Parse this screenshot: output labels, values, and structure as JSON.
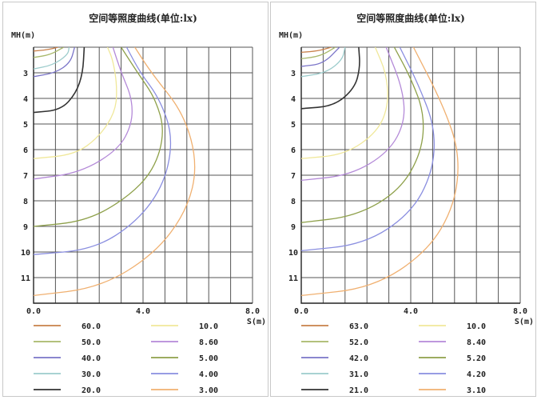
{
  "chart_data": [
    {
      "type": "contour",
      "title": "空间等照度曲线(单位:lx)",
      "ylabel": "MH(m)",
      "xlabel": "S(m)",
      "x_ticks": [
        "0.0",
        "4.0",
        "8.0"
      ],
      "y_ticks": [
        "3",
        "4",
        "5",
        "6",
        "7",
        "8",
        "9",
        "10",
        "11"
      ],
      "xlim": [
        0,
        8
      ],
      "ylim": [
        2,
        12
      ],
      "grid": true,
      "legend_position": "bottom",
      "legend": [
        {
          "label": "60.0",
          "color": "#c8804a",
          "value": 60.0
        },
        {
          "label": "50.0",
          "color": "#a8b86a",
          "value": 50.0
        },
        {
          "label": "40.0",
          "color": "#7a74c8",
          "value": 40.0
        },
        {
          "label": "30.0",
          "color": "#9ccccc",
          "value": 30.0
        },
        {
          "label": "20.0",
          "color": "#333333",
          "value": 20.0
        },
        {
          "label": "10.0",
          "color": "#f0e89a",
          "value": 10.0
        },
        {
          "label": "8.60",
          "color": "#b48ad8",
          "value": 8.6
        },
        {
          "label": "5.00",
          "color": "#8ea04a",
          "value": 5.0
        },
        {
          "label": "4.00",
          "color": "#8a8ee0",
          "value": 4.0
        },
        {
          "label": "3.00",
          "color": "#f0b070",
          "value": 3.0
        }
      ],
      "series": [
        {
          "value": 60.0,
          "points": [
            [
              0,
              2.15
            ],
            [
              0.5,
              2.1
            ],
            [
              0.9,
              2.0
            ]
          ]
        },
        {
          "value": 50.0,
          "points": [
            [
              0,
              2.4
            ],
            [
              0.6,
              2.3
            ],
            [
              1.1,
              2.0
            ]
          ]
        },
        {
          "value": 30.0,
          "points": [
            [
              0,
              2.85
            ],
            [
              0.7,
              2.7
            ],
            [
              1.25,
              2.3
            ],
            [
              1.3,
              2.0
            ]
          ]
        },
        {
          "value": 40.0,
          "points": [
            [
              0,
              3.15
            ],
            [
              0.8,
              3.0
            ],
            [
              1.35,
              2.6
            ],
            [
              1.5,
              2.0
            ]
          ]
        },
        {
          "value": 20.0,
          "points": [
            [
              0,
              4.55
            ],
            [
              1.0,
              4.45
            ],
            [
              1.55,
              3.8
            ],
            [
              1.8,
              3.0
            ],
            [
              1.85,
              2.0
            ]
          ]
        },
        {
          "value": 10.0,
          "points": [
            [
              0,
              6.35
            ],
            [
              1.5,
              6.2
            ],
            [
              2.4,
              5.5
            ],
            [
              3.0,
              4.5
            ],
            [
              3.05,
              3.5
            ],
            [
              2.9,
              2.5
            ],
            [
              2.7,
              2.0
            ]
          ]
        },
        {
          "value": 8.6,
          "points": [
            [
              0,
              7.15
            ],
            [
              1.7,
              6.9
            ],
            [
              3.1,
              6.0
            ],
            [
              3.6,
              5.0
            ],
            [
              3.6,
              4.0
            ],
            [
              3.2,
              3.0
            ],
            [
              2.9,
              2.0
            ]
          ]
        },
        {
          "value": 5.0,
          "points": [
            [
              0,
              9.0
            ],
            [
              1.9,
              8.8
            ],
            [
              3.4,
              7.9
            ],
            [
              4.4,
              6.8
            ],
            [
              4.8,
              5.3
            ],
            [
              4.45,
              4.0
            ],
            [
              3.8,
              3.0
            ],
            [
              3.2,
              2.0
            ]
          ]
        },
        {
          "value": 4.0,
          "points": [
            [
              0,
              10.1
            ],
            [
              2.2,
              9.9
            ],
            [
              3.8,
              8.8
            ],
            [
              4.8,
              7.3
            ],
            [
              5.1,
              5.5
            ],
            [
              4.6,
              4.0
            ],
            [
              3.9,
              3.0
            ],
            [
              3.4,
              2.0
            ]
          ]
        },
        {
          "value": 3.0,
          "points": [
            [
              0,
              11.7
            ],
            [
              2.4,
              11.4
            ],
            [
              4.4,
              10.1
            ],
            [
              5.6,
              8.4
            ],
            [
              6.0,
              6.6
            ],
            [
              5.5,
              4.6
            ],
            [
              4.3,
              3.0
            ],
            [
              3.7,
              2.0
            ]
          ]
        }
      ]
    },
    {
      "type": "contour",
      "title": "空间等照度曲线(单位:lx)",
      "ylabel": "MH(m)",
      "xlabel": "S(m)",
      "x_ticks": [
        "0.0",
        "4.0",
        "8.0"
      ],
      "y_ticks": [
        "3",
        "4",
        "5",
        "6",
        "7",
        "8",
        "9",
        "10",
        "11"
      ],
      "xlim": [
        0,
        8
      ],
      "ylim": [
        2,
        12
      ],
      "grid": true,
      "legend_position": "bottom",
      "legend": [
        {
          "label": "63.0",
          "color": "#c8804a",
          "value": 63.0
        },
        {
          "label": "52.0",
          "color": "#a8b86a",
          "value": 52.0
        },
        {
          "label": "42.0",
          "color": "#7a74c8",
          "value": 42.0
        },
        {
          "label": "31.0",
          "color": "#9ccccc",
          "value": 31.0
        },
        {
          "label": "21.0",
          "color": "#333333",
          "value": 21.0
        },
        {
          "label": "10.0",
          "color": "#f0e89a",
          "value": 10.0
        },
        {
          "label": "8.40",
          "color": "#b48ad8",
          "value": 8.4
        },
        {
          "label": "5.20",
          "color": "#8ea04a",
          "value": 5.2
        },
        {
          "label": "4.20",
          "color": "#8a8ee0",
          "value": 4.2
        },
        {
          "label": "3.10",
          "color": "#f0b070",
          "value": 3.1
        }
      ],
      "series": [
        {
          "value": 63.0,
          "points": [
            [
              0,
              2.2
            ],
            [
              0.6,
              2.15
            ],
            [
              1.1,
              2.0
            ]
          ]
        },
        {
          "value": 52.0,
          "points": [
            [
              0,
              2.45
            ],
            [
              0.7,
              2.35
            ],
            [
              1.25,
              2.0
            ]
          ]
        },
        {
          "value": 42.0,
          "points": [
            [
              0,
              2.75
            ],
            [
              0.8,
              2.65
            ],
            [
              1.4,
              2.0
            ]
          ]
        },
        {
          "value": 31.0,
          "points": [
            [
              0,
              3.15
            ],
            [
              0.9,
              3.0
            ],
            [
              1.5,
              2.5
            ],
            [
              1.6,
              2.0
            ]
          ]
        },
        {
          "value": 21.0,
          "points": [
            [
              0,
              4.4
            ],
            [
              1.2,
              4.3
            ],
            [
              1.95,
              3.6
            ],
            [
              2.15,
              2.8
            ],
            [
              2.1,
              2.0
            ]
          ]
        },
        {
          "value": 10.0,
          "points": [
            [
              0,
              6.35
            ],
            [
              1.6,
              6.2
            ],
            [
              2.8,
              5.3
            ],
            [
              3.2,
              4.2
            ],
            [
              3.1,
              3.0
            ],
            [
              2.7,
              2.0
            ]
          ]
        },
        {
          "value": 8.4,
          "points": [
            [
              0,
              7.2
            ],
            [
              1.8,
              7.0
            ],
            [
              3.2,
              6.1
            ],
            [
              3.8,
              4.9
            ],
            [
              3.7,
              3.6
            ],
            [
              3.1,
              2.0
            ]
          ]
        },
        {
          "value": 5.2,
          "points": [
            [
              0,
              8.85
            ],
            [
              2.0,
              8.6
            ],
            [
              3.6,
              7.6
            ],
            [
              4.4,
              6.1
            ],
            [
              4.5,
              4.6
            ],
            [
              4.0,
              3.2
            ],
            [
              3.4,
              2.0
            ]
          ]
        },
        {
          "value": 4.2,
          "points": [
            [
              0,
              9.95
            ],
            [
              2.3,
              9.7
            ],
            [
              4.0,
              8.5
            ],
            [
              4.8,
              6.9
            ],
            [
              4.9,
              5.2
            ],
            [
              4.3,
              3.5
            ],
            [
              3.6,
              2.0
            ]
          ]
        },
        {
          "value": 3.1,
          "points": [
            [
              0,
              11.7
            ],
            [
              2.6,
              11.4
            ],
            [
              4.6,
              10.0
            ],
            [
              5.6,
              8.2
            ],
            [
              5.8,
              6.2
            ],
            [
              5.2,
              4.3
            ],
            [
              4.1,
              2.0
            ]
          ]
        }
      ]
    }
  ]
}
